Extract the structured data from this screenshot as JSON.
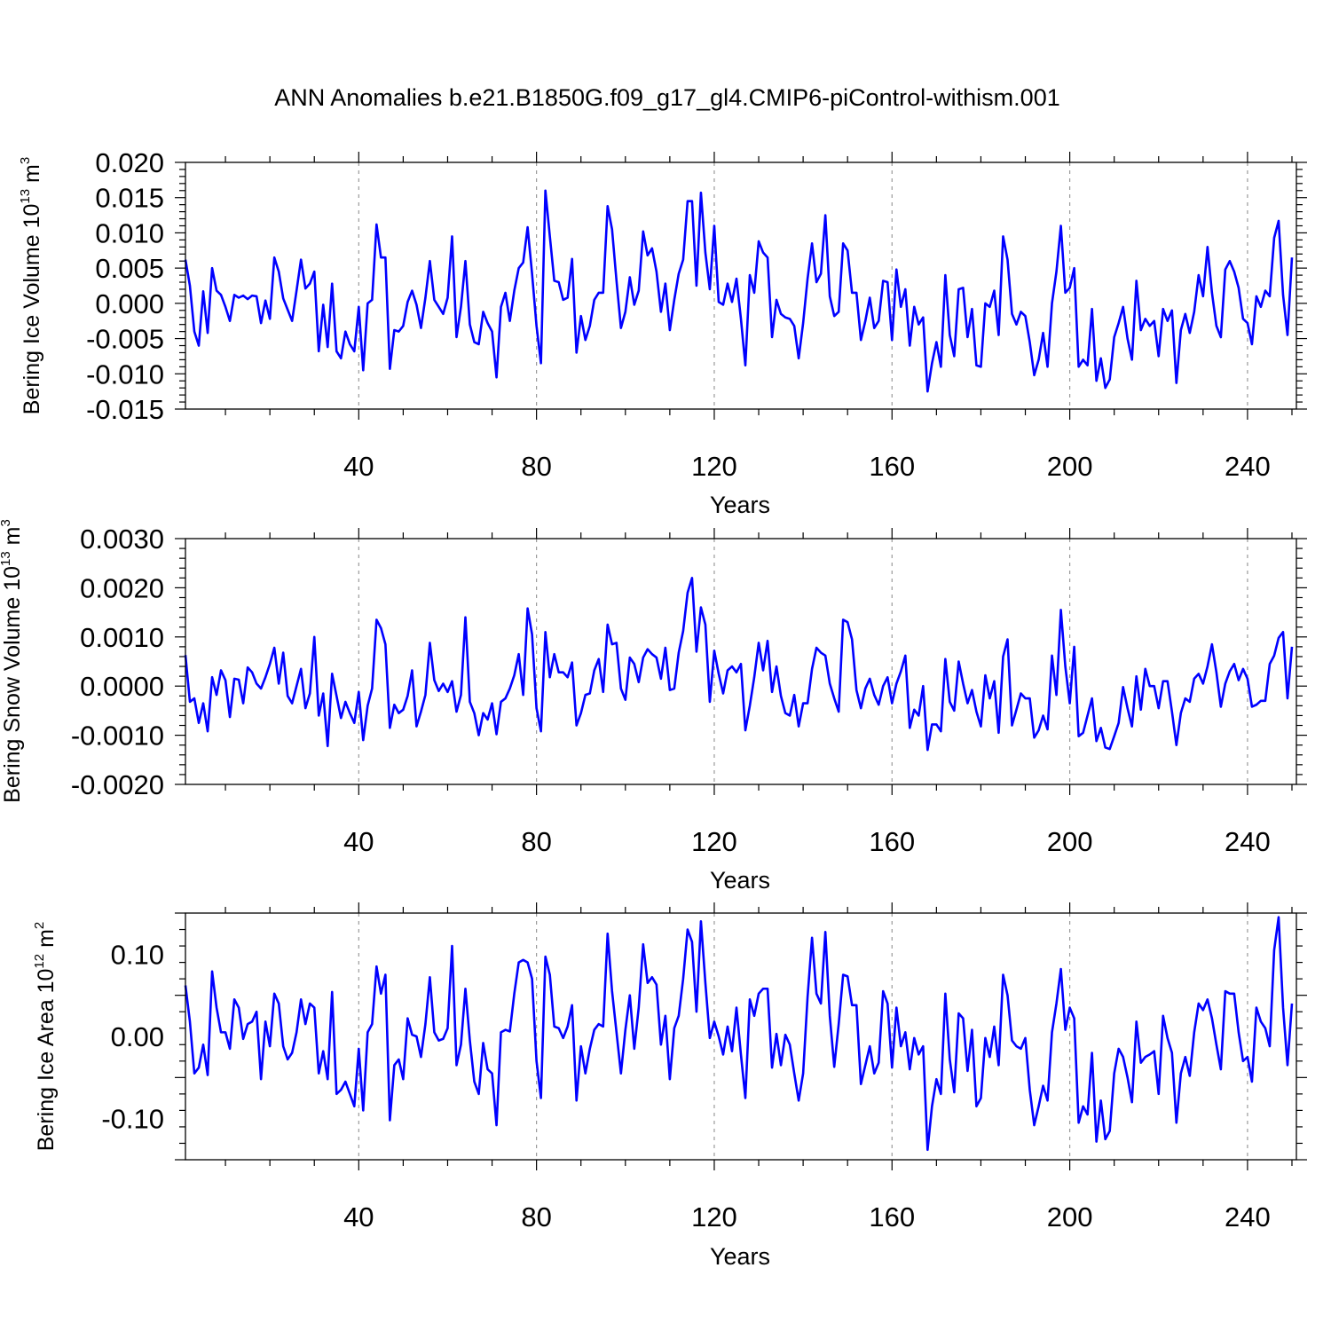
{
  "chart_data": [
    {
      "type": "line",
      "title": "ANN Anomalies b.e21.B1850G.f09_g17_gl4.CMIP6-piControl-withism.001",
      "ylabel_text": "Bering Ice Volume 10",
      "ylabel_exp": "13",
      "ylabel_unit": " m",
      "ylabel_unit_exp": "3",
      "xlabel": "Years",
      "xlim": [
        1,
        251
      ],
      "ylim": [
        -0.015,
        0.02
      ],
      "xticks": [
        40,
        80,
        120,
        160,
        200,
        240
      ],
      "xtick_labels": [
        "40",
        "80",
        "120",
        "160",
        "200",
        "240"
      ],
      "yticks": [
        -0.015,
        -0.01,
        -0.005,
        0,
        0.005,
        0.01,
        0.015,
        0.02
      ],
      "ytick_labels": [
        "-0.015",
        "-0.010",
        "-0.005",
        "0.000",
        "0.005",
        "0.010",
        "0.015",
        "0.020"
      ],
      "grid": "dashed vertical at x ticks",
      "line_color": "#0000ff",
      "series": [
        {
          "name": "Bering Ice Volume",
          "x_start": 1,
          "values": [
            0.0062,
            0.0025,
            -0.004,
            -0.006,
            0.0017,
            -0.0042,
            0.005,
            0.0018,
            0.0012,
            -0.0005,
            -0.0025,
            0.0012,
            0.0008,
            0.0011,
            0.0006,
            0.0011,
            0.001,
            -0.0028,
            0.0004,
            -0.0022,
            0.0065,
            0.0045,
            0.0007,
            -0.0009,
            -0.0025,
            0.0018,
            0.0062,
            0.0021,
            0.0028,
            0.0045,
            -0.0068,
            -0.0002,
            -0.0062,
            0.0028,
            -0.0068,
            -0.0078,
            -0.004,
            -0.0058,
            -0.0068,
            -0.0005,
            -0.0095,
            0.0,
            0.0005,
            0.0112,
            0.0065,
            0.0065,
            -0.0093,
            -0.0038,
            -0.004,
            -0.0032,
            0.0002,
            0.0018,
            -0.0002,
            -0.0035,
            0.0008,
            0.006,
            0.0005,
            -0.0005,
            -0.0015,
            0.0008,
            0.0095,
            -0.0048,
            -0.0005,
            0.006,
            -0.003,
            -0.0055,
            -0.0058,
            -0.0012,
            -0.0028,
            -0.004,
            -0.0105,
            -0.0005,
            0.0015,
            -0.0025,
            0.0018,
            0.005,
            0.0058,
            0.0108,
            0.0042,
            -0.0032,
            -0.0085,
            0.016,
            0.0095,
            0.0032,
            0.003,
            0.0005,
            0.0008,
            0.0063,
            -0.007,
            -0.0018,
            -0.0052,
            -0.0032,
            0.0005,
            0.0015,
            0.0015,
            0.0138,
            0.0105,
            0.0032,
            -0.0035,
            -0.0012,
            0.0037,
            -0.0002,
            0.0018,
            0.0102,
            0.0068,
            0.0078,
            0.0045,
            -0.0012,
            0.0028,
            -0.0038,
            0.0005,
            0.0042,
            0.0062,
            0.0145,
            0.0145,
            0.0025,
            0.0157,
            0.0072,
            0.002,
            0.011,
            0.0002,
            -0.0002,
            0.0028,
            0.0002,
            0.0035,
            -0.0022,
            -0.0088,
            0.004,
            0.0015,
            0.0088,
            0.0072,
            0.0065,
            -0.0048,
            0.0005,
            -0.0015,
            -0.002,
            -0.0022,
            -0.0032,
            -0.0078,
            -0.0028,
            0.0035,
            0.0085,
            0.003,
            0.0042,
            0.0125,
            0.001,
            -0.0018,
            -0.0012,
            0.0085,
            0.0075,
            0.0015,
            0.0015,
            -0.0052,
            -0.0025,
            0.0008,
            -0.0035,
            -0.0025,
            0.0032,
            0.003,
            -0.0052,
            0.0048,
            -0.0005,
            0.002,
            -0.006,
            -0.0005,
            -0.003,
            -0.002,
            -0.0125,
            -0.0085,
            -0.0055,
            -0.009,
            0.004,
            -0.0045,
            -0.0075,
            0.002,
            0.0022,
            -0.0048,
            -0.0008,
            -0.0088,
            -0.009,
            0.0,
            -0.0005,
            0.0018,
            -0.0045,
            0.0095,
            0.0062,
            -0.0015,
            -0.003,
            -0.0012,
            -0.0018,
            -0.0055,
            -0.0102,
            -0.008,
            -0.0042,
            -0.009,
            0.0,
            0.0045,
            0.011,
            0.0015,
            0.0022,
            0.005,
            -0.009,
            -0.008,
            -0.0088,
            -0.0008,
            -0.011,
            -0.0078,
            -0.012,
            -0.0108,
            -0.0048,
            -0.0028,
            -0.0005,
            -0.005,
            -0.008,
            0.0032,
            -0.0038,
            -0.0022,
            -0.0032,
            -0.0025,
            -0.0075,
            -0.0008,
            -0.0025,
            -0.001,
            -0.0113,
            -0.0038,
            -0.0015,
            -0.0042,
            -0.0012,
            0.004,
            0.001,
            0.008,
            0.0015,
            -0.0032,
            -0.0048,
            0.0048,
            0.006,
            0.0045,
            0.0022,
            -0.0022,
            -0.0028,
            -0.0058,
            0.001,
            -0.0005,
            0.0018,
            0.001,
            0.0093,
            0.0117,
            0.0012,
            -0.0045,
            0.0065
          ]
        }
      ]
    },
    {
      "type": "line",
      "ylabel_text": "Bering Snow Volume 10",
      "ylabel_exp": "13",
      "ylabel_unit": " m",
      "ylabel_unit_exp": "3",
      "xlabel": "Years",
      "xlim": [
        1,
        251
      ],
      "ylim": [
        -0.002,
        0.003
      ],
      "xticks": [
        40,
        80,
        120,
        160,
        200,
        240
      ],
      "xtick_labels": [
        "40",
        "80",
        "120",
        "160",
        "200",
        "240"
      ],
      "yticks": [
        -0.002,
        -0.001,
        0,
        0.001,
        0.002,
        0.003
      ],
      "ytick_labels": [
        "-0.0020",
        "-0.0010",
        "0.0000",
        "0.0010",
        "0.0020",
        "0.0030"
      ],
      "grid": "dashed vertical at x ticks",
      "line_color": "#0000ff",
      "series": [
        {
          "name": "Bering Snow Volume",
          "x_start": 1,
          "values": [
            0.00063,
            -0.00032,
            -0.00025,
            -0.00075,
            -0.00035,
            -0.00092,
            0.00018,
            -0.00018,
            0.00032,
            0.00012,
            -0.00063,
            0.00015,
            0.00013,
            -0.00035,
            0.00038,
            0.00028,
            5e-05,
            -5e-05,
            0.00018,
            0.00045,
            0.00078,
            5e-05,
            0.00068,
            -0.0002,
            -0.00035,
            0.0,
            0.00035,
            -0.00045,
            -0.00015,
            0.001,
            -0.0006,
            -0.00015,
            -0.00122,
            0.00025,
            -0.0002,
            -0.00065,
            -0.00032,
            -0.00055,
            -0.00075,
            -0.00012,
            -0.0011,
            -0.0004,
            -5e-05,
            0.00135,
            0.00118,
            0.00085,
            -0.00085,
            -0.00038,
            -0.00055,
            -0.00048,
            -0.0002,
            0.00032,
            -0.00082,
            -0.00052,
            -0.00018,
            0.00088,
            0.00012,
            -0.0001,
            5e-05,
            -0.00012,
            0.0001,
            -0.00052,
            -0.00018,
            0.0014,
            -0.00032,
            -0.00055,
            -0.001,
            -0.00055,
            -0.00068,
            -0.00035,
            -0.00098,
            -0.00032,
            -0.00025,
            -5e-05,
            0.00022,
            0.00065,
            -0.00018,
            0.00158,
            0.00105,
            -0.00045,
            -0.00092,
            0.0011,
            0.00018,
            0.00065,
            0.00028,
            0.00028,
            0.00018,
            0.00048,
            -0.0008,
            -0.00055,
            -0.00018,
            -0.00015,
            0.00032,
            0.00055,
            -0.00012,
            0.00125,
            0.00085,
            0.00088,
            -5e-05,
            -0.00028,
            0.00058,
            0.00045,
            8e-05,
            0.00058,
            0.00075,
            0.00065,
            0.00058,
            0.00015,
            0.00078,
            -8e-05,
            -5e-05,
            0.00068,
            0.00112,
            0.0019,
            0.0022,
            0.0007,
            0.0016,
            0.00125,
            -0.00032,
            0.00072,
            0.00025,
            -0.00015,
            0.00032,
            0.0004,
            0.00028,
            0.00045,
            -0.0009,
            -0.0004,
            0.00018,
            0.00088,
            0.00032,
            0.00092,
            -0.00012,
            0.0004,
            -0.0002,
            -0.00055,
            -0.0006,
            -0.00018,
            -0.00082,
            -0.00035,
            -0.00035,
            0.00035,
            0.00078,
            0.00068,
            0.00062,
            5e-05,
            -0.00025,
            -0.00052,
            0.00135,
            0.0013,
            0.00095,
            -8e-05,
            -0.00045,
            -5e-05,
            0.00015,
            -0.00018,
            -0.00038,
            0.0,
            0.00018,
            -0.00035,
            5e-05,
            0.0003,
            0.00062,
            -0.00085,
            -0.00048,
            -0.0006,
            0.0,
            -0.0013,
            -0.00078,
            -0.00078,
            -0.00092,
            0.00055,
            -0.00032,
            -0.0005,
            0.0005,
            5e-05,
            -0.00035,
            -8e-05,
            -0.00052,
            -0.00082,
            0.00022,
            -0.00025,
            0.0001,
            -0.00095,
            0.0006,
            0.00095,
            -0.0008,
            -0.00048,
            -0.00015,
            -0.00025,
            -0.00025,
            -0.00105,
            -0.0009,
            -0.0006,
            -0.00088,
            0.00062,
            -0.00018,
            0.00155,
            0.0004,
            -0.00035,
            0.0008,
            -0.00102,
            -0.00095,
            -0.0006,
            -0.00025,
            -0.00112,
            -0.00085,
            -0.00125,
            -0.00128,
            -0.00102,
            -0.00075,
            -2e-05,
            -0.00045,
            -0.00082,
            0.0002,
            -0.00048,
            0.00035,
            0.0,
            0.0,
            -0.00045,
            0.0001,
            0.0001,
            -0.00052,
            -0.0012,
            -0.00055,
            -0.00025,
            -0.00032,
            0.00015,
            0.00025,
            5e-05,
            0.0004,
            0.00085,
            0.00028,
            -0.00042,
            5e-05,
            0.0003,
            0.00045,
            0.00012,
            0.00035,
            0.00015,
            -0.00042,
            -0.00038,
            -0.0003,
            -0.0003,
            0.00045,
            0.00062,
            0.00098,
            0.0011,
            -0.00025,
            0.0008
          ]
        }
      ]
    },
    {
      "type": "line",
      "ylabel_text": "Bering Ice Area 10",
      "ylabel_exp": "12",
      "ylabel_unit": " m",
      "ylabel_unit_exp": "2",
      "xlabel": "Years",
      "xlim": [
        1,
        251
      ],
      "ylim": [
        -0.15,
        0.15
      ],
      "xticks": [
        40,
        80,
        120,
        160,
        200,
        240
      ],
      "xtick_labels": [
        "40",
        "80",
        "120",
        "160",
        "200",
        "240"
      ],
      "yticks": [
        -0.1,
        0,
        0.1
      ],
      "ytick_labels": [
        "-0.10",
        "0.00",
        "0.10"
      ],
      "grid": "dashed vertical at x ticks",
      "line_color": "#0000ff",
      "series": [
        {
          "name": "Bering Ice Area",
          "x_start": 1,
          "values": [
            0.062,
            0.018,
            -0.045,
            -0.038,
            -0.01,
            -0.047,
            0.079,
            0.035,
            0.005,
            0.005,
            -0.015,
            0.045,
            0.035,
            -0.003,
            0.015,
            0.018,
            0.03,
            -0.052,
            0.018,
            -0.012,
            0.052,
            0.04,
            -0.012,
            -0.028,
            -0.02,
            0.005,
            0.045,
            0.015,
            0.04,
            0.035,
            -0.045,
            -0.018,
            -0.052,
            0.054,
            -0.07,
            -0.065,
            -0.055,
            -0.07,
            -0.085,
            -0.015,
            -0.09,
            0.005,
            0.015,
            0.085,
            0.052,
            0.075,
            -0.102,
            -0.035,
            -0.028,
            -0.052,
            0.022,
            0.002,
            0.0,
            -0.025,
            0.015,
            0.072,
            0.005,
            -0.005,
            -0.003,
            0.01,
            0.11,
            -0.035,
            -0.01,
            0.058,
            -0.005,
            -0.055,
            -0.07,
            -0.008,
            -0.04,
            -0.045,
            -0.108,
            0.005,
            0.008,
            0.006,
            0.052,
            0.09,
            0.093,
            0.09,
            0.07,
            -0.03,
            -0.075,
            0.097,
            0.075,
            0.012,
            0.01,
            -0.002,
            0.012,
            0.038,
            -0.078,
            -0.012,
            -0.045,
            -0.015,
            0.008,
            0.015,
            0.012,
            0.125,
            0.055,
            0.005,
            -0.045,
            0.008,
            0.05,
            -0.015,
            0.035,
            0.112,
            0.065,
            0.072,
            0.063,
            -0.01,
            0.025,
            -0.052,
            0.01,
            0.025,
            0.07,
            0.13,
            0.115,
            0.03,
            0.14,
            0.065,
            -0.002,
            0.018,
            0.0,
            -0.022,
            0.012,
            -0.018,
            0.035,
            -0.022,
            -0.075,
            0.045,
            0.025,
            0.052,
            0.058,
            0.058,
            -0.038,
            0.003,
            -0.035,
            0.002,
            -0.01,
            -0.045,
            -0.078,
            -0.045,
            0.048,
            0.12,
            0.052,
            0.04,
            0.127,
            0.025,
            -0.037,
            0.015,
            0.075,
            0.073,
            0.038,
            0.038,
            -0.058,
            -0.035,
            -0.012,
            -0.045,
            -0.032,
            0.055,
            0.04,
            -0.038,
            0.035,
            -0.012,
            0.005,
            -0.04,
            -0.002,
            -0.022,
            -0.012,
            -0.138,
            -0.085,
            -0.052,
            -0.07,
            0.052,
            -0.028,
            -0.068,
            0.028,
            0.022,
            -0.042,
            0.008,
            -0.085,
            -0.075,
            -0.002,
            -0.025,
            0.012,
            -0.035,
            0.075,
            0.05,
            -0.005,
            -0.012,
            -0.015,
            -0.002,
            -0.065,
            -0.108,
            -0.085,
            -0.06,
            -0.078,
            0.005,
            0.04,
            0.082,
            0.008,
            0.035,
            0.022,
            -0.105,
            -0.085,
            -0.095,
            -0.02,
            -0.128,
            -0.078,
            -0.125,
            -0.115,
            -0.045,
            -0.015,
            -0.025,
            -0.05,
            -0.08,
            0.018,
            -0.032,
            -0.025,
            -0.022,
            -0.018,
            -0.07,
            0.025,
            -0.002,
            -0.02,
            -0.105,
            -0.045,
            -0.025,
            -0.048,
            0.005,
            0.04,
            0.032,
            0.045,
            0.022,
            -0.01,
            -0.04,
            0.055,
            0.052,
            0.052,
            0.005,
            -0.03,
            -0.025,
            -0.055,
            0.035,
            0.018,
            0.01,
            -0.012,
            0.105,
            0.145,
            0.035,
            -0.035,
            0.04
          ]
        }
      ]
    }
  ]
}
